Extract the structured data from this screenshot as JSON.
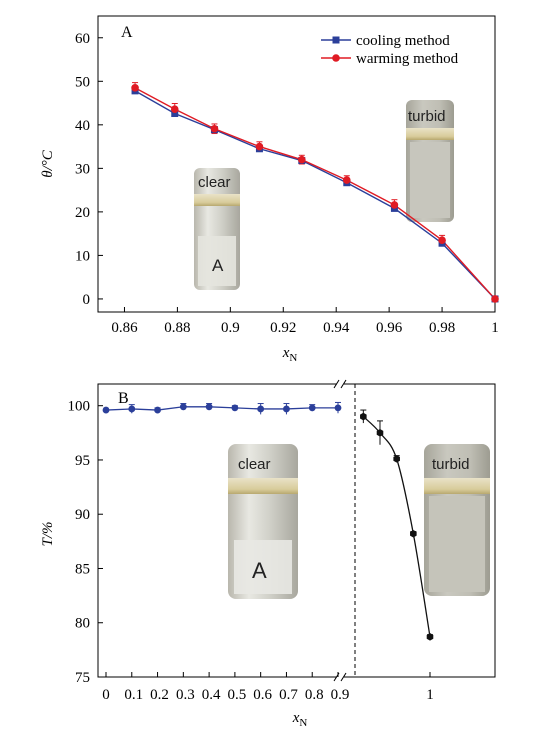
{
  "chart_data": [
    {
      "panel": "A",
      "type": "line",
      "ylabel": "θ/°C",
      "xlabel_main": "x",
      "xlabel_sub": "N",
      "xlim": [
        0.85,
        1.0
      ],
      "ylim": [
        -3,
        65
      ],
      "xticks": [
        0.86,
        0.88,
        0.9,
        0.92,
        0.94,
        0.96,
        0.98,
        1
      ],
      "xtick_labels": [
        "0.86",
        "0.88",
        "0.9",
        "0.92",
        "0.94",
        "0.96",
        "0.98",
        "1"
      ],
      "yticks": [
        0,
        10,
        20,
        30,
        40,
        50,
        60
      ],
      "ytick_labels": [
        "0",
        "10",
        "20",
        "30",
        "40",
        "50",
        "60"
      ],
      "x": [
        0.864,
        0.879,
        0.894,
        0.911,
        0.927,
        0.944,
        0.962,
        0.98,
        1.0
      ],
      "series": [
        {
          "name": "cooling method",
          "color": "#2b3f9a",
          "marker": "square",
          "values": [
            47.8,
            42.6,
            38.9,
            34.5,
            31.8,
            26.7,
            20.8,
            12.8,
            0
          ]
        },
        {
          "name": "warming method",
          "color": "#e01b24",
          "marker": "circle",
          "values": [
            48.5,
            43.6,
            39.1,
            35.0,
            32.0,
            27.3,
            21.6,
            13.5,
            0
          ]
        }
      ],
      "errors": [
        1.2,
        1.3,
        1.1,
        1.1,
        1.0,
        1.0,
        1.2,
        1.1,
        0.4
      ],
      "insets": [
        {
          "label": "clear",
          "vial_letter": "A"
        },
        {
          "label": "turbid",
          "vial_letter": ""
        }
      ]
    },
    {
      "panel": "B",
      "type": "line",
      "ylabel": "T/%",
      "xlabel_main": "x",
      "xlabel_sub": "N",
      "ylim": [
        75,
        102
      ],
      "yticks": [
        75,
        80,
        85,
        90,
        95,
        100
      ],
      "ytick_labels": [
        "75",
        "80",
        "85",
        "90",
        "95",
        "100"
      ],
      "xtick_labels": [
        "0",
        "0.1",
        "0.2",
        "0.3",
        "0.4",
        "0.5",
        "0.6",
        "0.7",
        "0.8",
        "0.9",
        "1"
      ],
      "xticks": [
        0,
        0.1,
        0.2,
        0.3,
        0.4,
        0.5,
        0.6,
        0.7,
        0.8,
        0.9,
        1
      ],
      "axis_break": true,
      "series": [
        {
          "name": "left",
          "color": "#2b3f9a",
          "marker": "circle",
          "x": [
            0,
            0.1,
            0.2,
            0.3,
            0.4,
            0.5,
            0.6,
            0.7,
            0.8,
            0.9
          ],
          "values": [
            99.6,
            99.7,
            99.6,
            99.9,
            99.9,
            99.8,
            99.7,
            99.7,
            99.8,
            99.8
          ],
          "errors": [
            0.1,
            0.4,
            0.2,
            0.3,
            0.3,
            0.2,
            0.5,
            0.5,
            0.3,
            0.5
          ]
        },
        {
          "name": "right",
          "color": "#111111",
          "marker": "hexagon",
          "x": [
            0.92,
            0.94,
            0.96,
            0.98,
            1.0
          ],
          "values": [
            99.0,
            97.5,
            95.1,
            88.2,
            78.7
          ],
          "errors": [
            0.6,
            1.1,
            0.3,
            0.2,
            0.2
          ]
        }
      ],
      "insets": [
        {
          "label": "clear",
          "vial_letter": "A"
        },
        {
          "label": "turbid",
          "vial_letter": ""
        }
      ]
    }
  ]
}
